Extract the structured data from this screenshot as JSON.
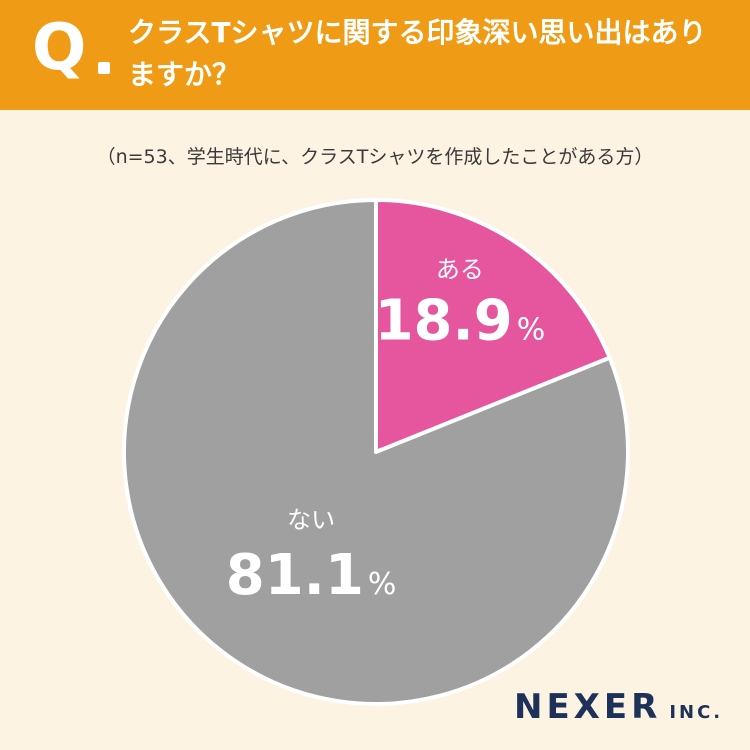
{
  "header": {
    "q_mark": "Q",
    "question": "クラスTシャツに関する印象深い思い出はありますか？"
  },
  "note": "（n=53、学生時代に、クラスTシャツを作成したことがある方）",
  "logo": {
    "main": "NEXER",
    "suffix": "INC."
  },
  "colors": {
    "header_bg": "#ef9b15",
    "page_bg": "#fdf3e3",
    "yes": "#e6569f",
    "no": "#a0a0a0"
  },
  "chart_data": {
    "type": "pie",
    "slices": [
      {
        "label": "ある",
        "value": 18.9,
        "display": "18.9",
        "unit": "%",
        "color": "#e6569f"
      },
      {
        "label": "ない",
        "value": 81.1,
        "display": "81.1",
        "unit": "%",
        "color": "#a0a0a0"
      }
    ]
  }
}
